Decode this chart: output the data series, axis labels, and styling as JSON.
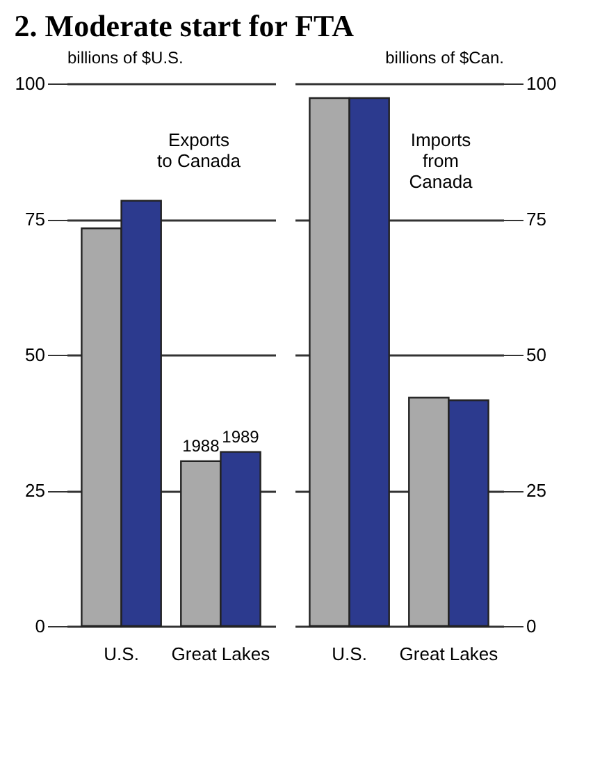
{
  "chart_data": [
    {
      "type": "bar",
      "title": "2. Moderate start for FTA",
      "ylabel": "billions of $U.S.",
      "categories": [
        "U.S.",
        "Great Lakes"
      ],
      "series": [
        {
          "name": "1988",
          "color": "#a9a9a9",
          "values": [
            73.3,
            30.4
          ]
        },
        {
          "name": "1989",
          "color": "#2c3a8e",
          "values": [
            78.4,
            32.1
          ]
        }
      ],
      "ylim": [
        0,
        100
      ],
      "yticks": [
        0,
        25,
        50,
        75,
        100
      ],
      "grid": "y",
      "annotations": [
        "Exports\nto Canada"
      ]
    },
    {
      "type": "bar",
      "ylabel": "billions of $Can.",
      "categories": [
        "U.S.",
        "Great Lakes"
      ],
      "series": [
        {
          "color": "#a9a9a9",
          "values": [
            97.3,
            42.1
          ]
        },
        {
          "color": "#2c3a8e",
          "values": [
            97.3,
            41.6
          ]
        }
      ],
      "ylim": [
        0,
        100
      ],
      "yticks": [
        0,
        25,
        50,
        75,
        100
      ],
      "grid": "y",
      "annotations": [
        "Imports\nfrom\nCanada"
      ]
    }
  ]
}
